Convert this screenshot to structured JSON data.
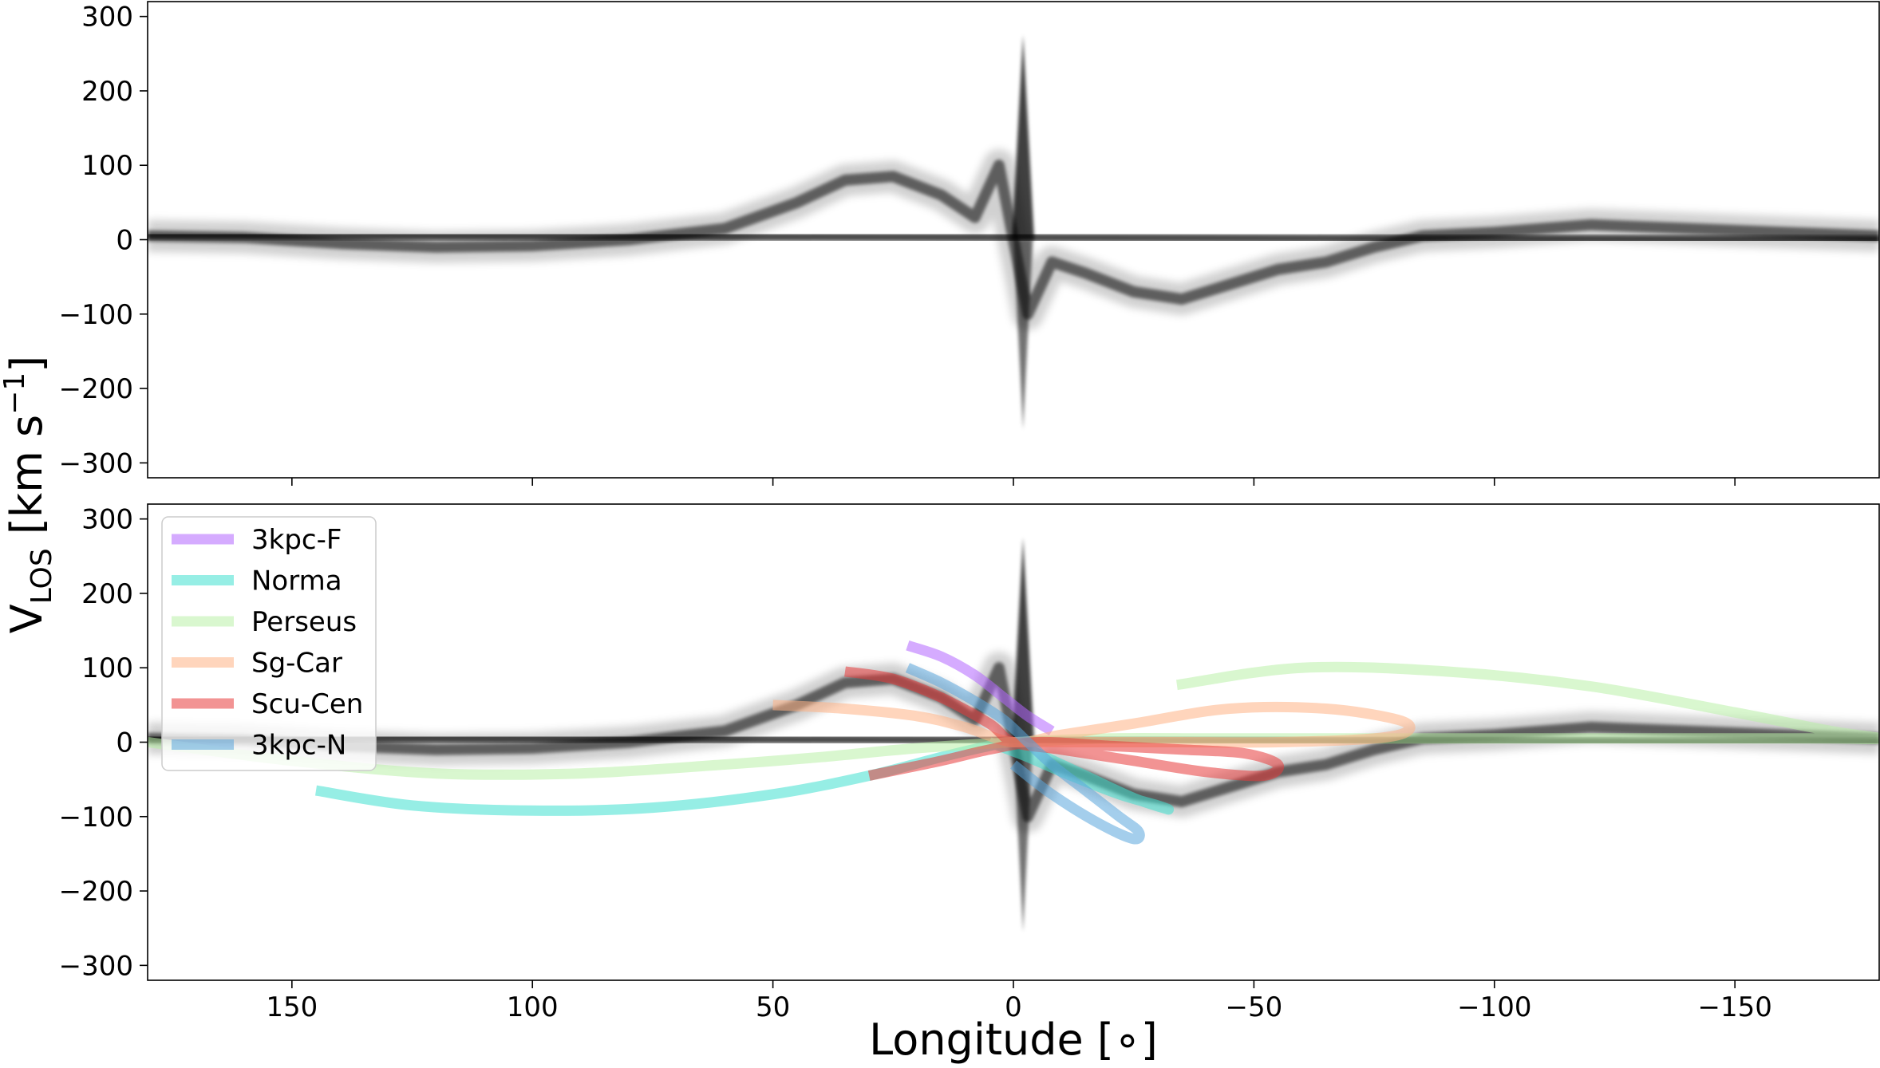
{
  "figure": {
    "ylabel_main": "V",
    "ylabel_sub": "LOS",
    "ylabel_unit": " [km s",
    "ylabel_exp": "−1",
    "ylabel_close": "]",
    "xlabel": "Longitude [∘]"
  },
  "chart_data": [
    {
      "type": "scatter",
      "panel": "top",
      "description_kind": "longitude-velocity emission (density, grayscale)",
      "xlim": [
        180,
        -180
      ],
      "ylim": [
        -320,
        320
      ],
      "xticks": [
        150,
        100,
        50,
        0,
        -50,
        -100,
        -150
      ],
      "xtick_labels": [
        "150",
        "100",
        "50",
        "0",
        "−50",
        "−100",
        "−150"
      ],
      "yticks": [
        300,
        200,
        100,
        0,
        -100,
        -200,
        -300
      ],
      "ytick_labels": [
        "300",
        "200",
        "100",
        "0",
        "−100",
        "−200",
        "−300"
      ],
      "show_xtick_labels": false,
      "emission_ridge": {
        "x": [
          180,
          160,
          140,
          120,
          100,
          80,
          60,
          45,
          35,
          25,
          15,
          8,
          3,
          0,
          -3,
          -8,
          -15,
          -25,
          -35,
          -45,
          -55,
          -65,
          -75,
          -85,
          -100,
          -120,
          -140,
          -160,
          -180
        ],
        "y": [
          5,
          3,
          -5,
          -10,
          -8,
          0,
          15,
          50,
          80,
          85,
          60,
          30,
          100,
          0,
          -100,
          -30,
          -45,
          -70,
          -80,
          -60,
          -40,
          -30,
          -10,
          5,
          10,
          20,
          15,
          10,
          5
        ]
      },
      "peak_features": {
        "x": [
          -2,
          -2
        ],
        "y": [
          275,
          -255
        ]
      }
    },
    {
      "type": "line",
      "panel": "bottom",
      "xlim": [
        180,
        -180
      ],
      "ylim": [
        -320,
        320
      ],
      "xticks": [
        150,
        100,
        50,
        0,
        -50,
        -100,
        -150
      ],
      "xtick_labels": [
        "150",
        "100",
        "50",
        "0",
        "−50",
        "−100",
        "−150"
      ],
      "yticks": [
        300,
        200,
        100,
        0,
        -100,
        -200,
        -300
      ],
      "ytick_labels": [
        "300",
        "200",
        "100",
        "0",
        "−100",
        "−200",
        "−300"
      ],
      "show_xtick_labels": true,
      "legend_position": "upper-left",
      "series": [
        {
          "name": "3kpc-F",
          "color": "#b266ff",
          "x": [
            22,
            15,
            8,
            2,
            -3,
            -8
          ],
          "y": [
            130,
            115,
            90,
            60,
            35,
            15
          ]
        },
        {
          "name": "Norma",
          "color": "#40e0d0",
          "x": [
            145,
            125,
            100,
            75,
            50,
            30,
            15,
            5,
            0,
            -5,
            -15,
            -25,
            -32,
            -30,
            -22,
            -12,
            -3,
            5
          ],
          "y": [
            -65,
            -85,
            -92,
            -88,
            -70,
            -45,
            -20,
            -5,
            0,
            -15,
            -45,
            -75,
            -90,
            -85,
            -70,
            -45,
            -20,
            0
          ]
        },
        {
          "name": "Perseus",
          "color": "#b9f0a8",
          "x": [
            180,
            150,
            120,
            90,
            60,
            40,
            20,
            0,
            -20,
            -40,
            -60,
            -80,
            -100,
            -120,
            -150,
            -170,
            -180,
            -170,
            -150,
            -120,
            -90,
            -60,
            -34
          ],
          "y": [
            0,
            -25,
            -42,
            -42,
            -30,
            -20,
            -8,
            0,
            5,
            5,
            5,
            5,
            5,
            5,
            5,
            5,
            5,
            15,
            40,
            75,
            95,
            100,
            77
          ]
        },
        {
          "name": "Sg-Car",
          "color": "#ffb385",
          "x": [
            50,
            35,
            20,
            10,
            0,
            -10,
            -25,
            -45,
            -65,
            -80,
            -82,
            -75,
            -55,
            -35,
            -20,
            -10,
            0
          ],
          "y": [
            50,
            45,
            35,
            20,
            0,
            10,
            25,
            45,
            45,
            30,
            15,
            5,
            0,
            0,
            0,
            0,
            0
          ]
        },
        {
          "name": "Scu-Cen",
          "color": "#e83a3a",
          "x": [
            35,
            25,
            15,
            5,
            0,
            -10,
            -25,
            -40,
            -52,
            -55,
            -48,
            -35,
            -20,
            -5,
            5,
            15,
            30
          ],
          "y": [
            95,
            85,
            60,
            25,
            0,
            -10,
            -25,
            -40,
            -45,
            -30,
            -15,
            -10,
            -5,
            0,
            -10,
            -25,
            -45
          ]
        },
        {
          "name": "3kpc-N",
          "color": "#5aa6dc",
          "x": [
            22,
            15,
            8,
            2,
            -3,
            -8,
            -15,
            -22,
            -26,
            -25,
            -18,
            -8,
            0
          ],
          "y": [
            100,
            80,
            55,
            30,
            0,
            -30,
            -65,
            -100,
            -120,
            -130,
            -110,
            -70,
            -30
          ]
        }
      ]
    }
  ]
}
